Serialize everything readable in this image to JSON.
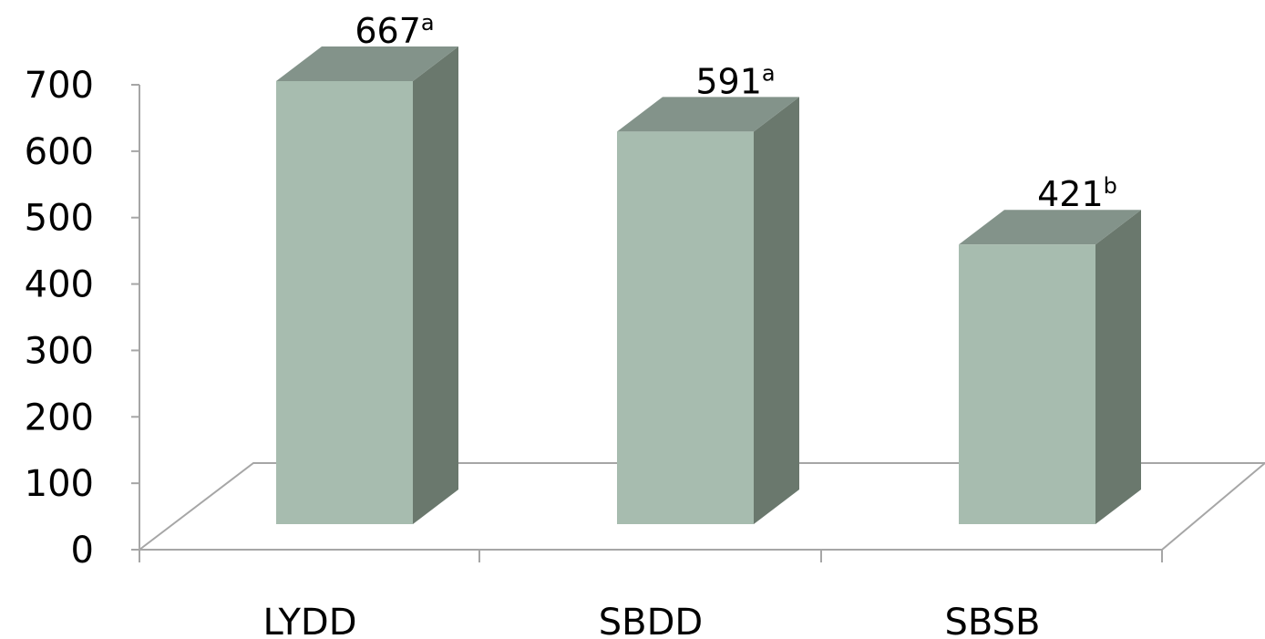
{
  "chart_data": {
    "type": "bar",
    "title": "",
    "xlabel": "",
    "ylabel": "",
    "categories": [
      "LYDD",
      "SBDD",
      "SBSB"
    ],
    "values": [
      667,
      591,
      421
    ],
    "data_labels": [
      {
        "value": "667",
        "superscript": "a"
      },
      {
        "value": "591",
        "superscript": "a"
      },
      {
        "value": "421",
        "superscript": "b"
      }
    ],
    "yticks": [
      "0",
      "100",
      "200",
      "300",
      "400",
      "500",
      "600",
      "700"
    ],
    "ylim": [
      0,
      700
    ],
    "grid": false,
    "legend": "none",
    "style": "3d-column",
    "colors": {
      "bar_front": "#a7bcaf",
      "bar_side": "#6a786d",
      "bar_top": "#83938a",
      "axis": "#a6a6a6"
    }
  }
}
